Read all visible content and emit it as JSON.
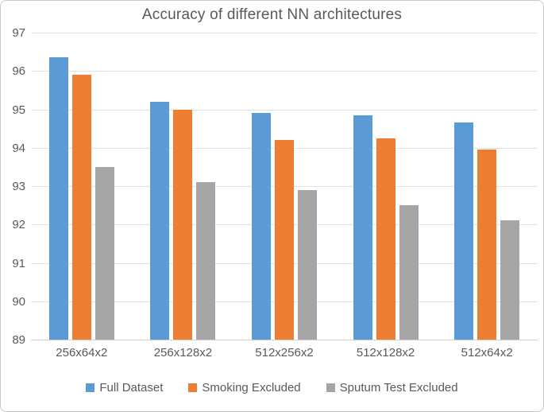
{
  "chart_data": {
    "type": "bar",
    "title": "Accuracy of different NN architectures",
    "categories": [
      "256x64x2",
      "256x128x2",
      "512x256x2",
      "512x128x2",
      "512x64x2"
    ],
    "series": [
      {
        "name": "Full Dataset",
        "color": "#5B9BD5",
        "values": [
          96.35,
          95.2,
          94.9,
          94.85,
          94.65
        ]
      },
      {
        "name": "Smoking Excluded",
        "color": "#ED7D31",
        "values": [
          95.9,
          95.0,
          94.2,
          94.25,
          93.95
        ]
      },
      {
        "name": "Sputum Test Excluded",
        "color": "#A5A5A5",
        "values": [
          93.5,
          93.1,
          92.9,
          92.5,
          92.1
        ]
      }
    ],
    "xlabel": "",
    "ylabel": "",
    "ylim": [
      89,
      97
    ],
    "yticks": [
      89,
      90,
      91,
      92,
      93,
      94,
      95,
      96,
      97
    ],
    "grid": true,
    "legend_position": "bottom"
  },
  "colors": {
    "text": "#595959",
    "gridline": "#e2e2e2",
    "axis_line": "#d0d0d0",
    "figure_border": "#c9c9c9",
    "background": "#ffffff"
  }
}
